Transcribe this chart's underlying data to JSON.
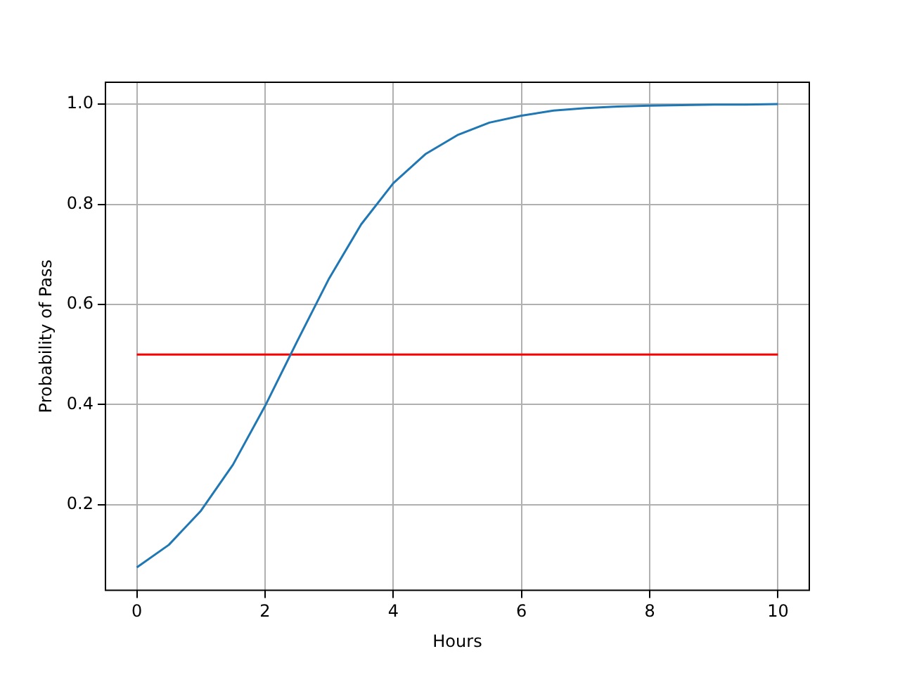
{
  "chart_data": {
    "type": "line",
    "xlabel": "Hours",
    "ylabel": "Probability of Pass",
    "series": [
      {
        "color": "#1f77b4",
        "x": [
          0,
          0.5,
          1,
          1.5,
          2,
          2.5,
          3,
          3.5,
          4,
          4.5,
          5,
          5.5,
          6,
          6.5,
          7,
          7.5,
          8,
          8.5,
          9,
          9.5,
          10
        ],
        "values": [
          0.075,
          0.12,
          0.188,
          0.28,
          0.397,
          0.526,
          0.652,
          0.76,
          0.842,
          0.9,
          0.938,
          0.963,
          0.977,
          0.987,
          0.992,
          0.995,
          0.997,
          0.998,
          0.999,
          0.999,
          1.0
        ]
      },
      {
        "color": "#ff0000",
        "x": [
          0,
          10
        ],
        "values": [
          0.5,
          0.5
        ]
      }
    ],
    "xlim": [
      -0.5,
      10.5
    ],
    "xticks": [
      0,
      2,
      4,
      6,
      8,
      10
    ],
    "ylim": [
      0.028,
      1.045
    ],
    "yticks": [
      {
        "value": 0.2,
        "label": "0.2"
      },
      {
        "value": 0.4,
        "label": "0.4"
      },
      {
        "value": 0.6,
        "label": "0.6"
      },
      {
        "value": 0.8,
        "label": "0.8"
      },
      {
        "value": 1.0,
        "label": "1.0"
      }
    ],
    "grid": true,
    "legend": false,
    "line_style": "solid",
    "marker": "none"
  }
}
